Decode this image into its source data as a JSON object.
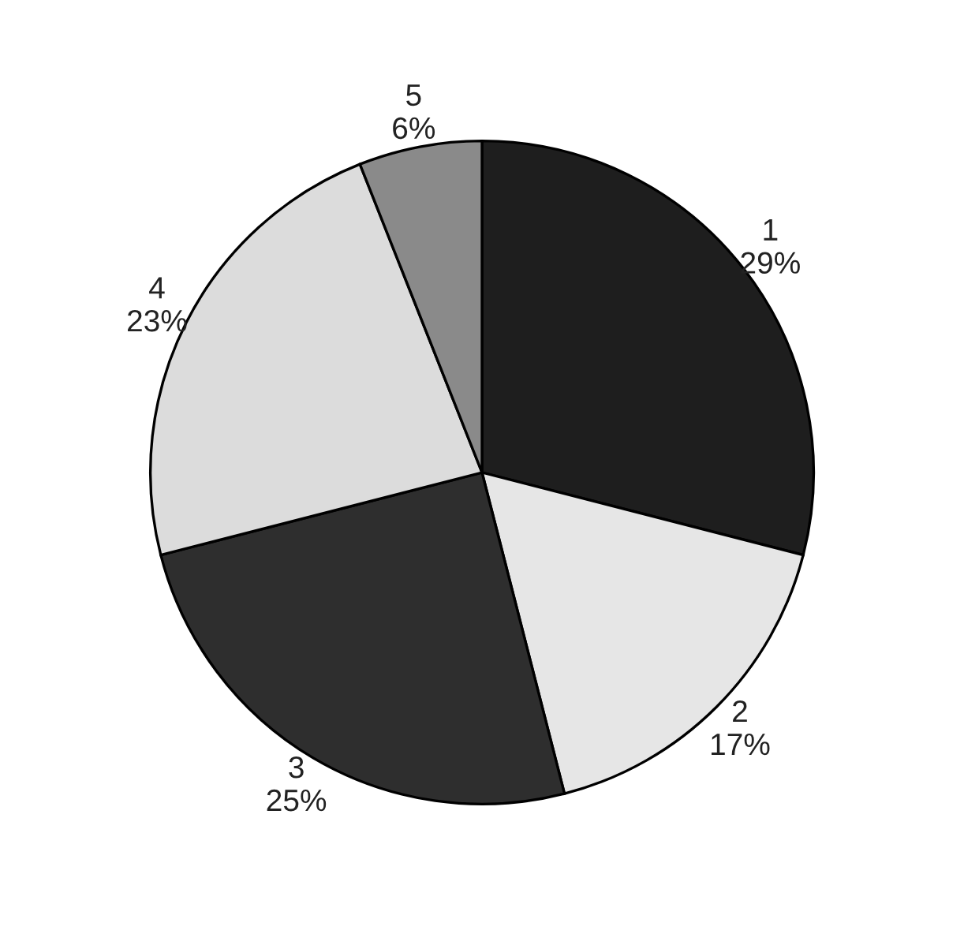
{
  "chart_data": {
    "type": "pie",
    "categories": [
      "1",
      "2",
      "3",
      "4",
      "5"
    ],
    "values": [
      29,
      17,
      25,
      23,
      6
    ],
    "value_labels": [
      "29%",
      "17%",
      "25%",
      "23%",
      "6%"
    ],
    "colors": [
      "#1e1e1e",
      "#e6e6e6",
      "#2e2e2e",
      "#dcdcdc",
      "#8a8a8a"
    ]
  }
}
